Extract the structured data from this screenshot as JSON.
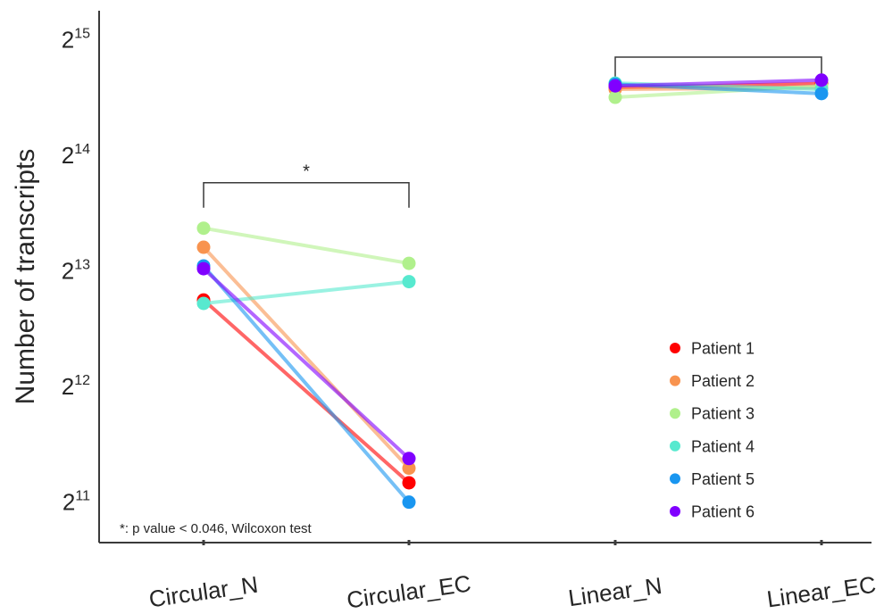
{
  "chart_data": {
    "type": "line",
    "ylabel": "Number of transcripts",
    "yscale": "log2",
    "ylim_exp": [
      10.65,
      15.25
    ],
    "yticks": [
      {
        "base": "2",
        "exp": "11",
        "value": 2048
      },
      {
        "base": "2",
        "exp": "12",
        "value": 4096
      },
      {
        "base": "2",
        "exp": "13",
        "value": 8192
      },
      {
        "base": "2",
        "exp": "14",
        "value": 16384
      },
      {
        "base": "2",
        "exp": "15",
        "value": 32768
      }
    ],
    "categories": [
      "Circular_N",
      "Circular_EC",
      "Linear_N",
      "Linear_EC"
    ],
    "series": [
      {
        "name": "Patient 1",
        "color": "#ff0000",
        "values": [
          6880,
          2300,
          24580,
          25170
        ]
      },
      {
        "name": "Patient 2",
        "color": "#f8934f",
        "values": [
          9440,
          2510,
          24330,
          24570
        ]
      },
      {
        "name": "Patient 3",
        "color": "#b0f08c",
        "values": [
          10580,
          8570,
          23190,
          24830
        ]
      },
      {
        "name": "Patient 4",
        "color": "#57e9cf",
        "values": [
          6740,
          7680,
          25250,
          24330
        ]
      },
      {
        "name": "Patient 5",
        "color": "#1996f0",
        "values": [
          8440,
          2048,
          25080,
          23710
        ]
      },
      {
        "name": "Patient 6",
        "color": "#8000ff",
        "values": [
          8300,
          2660,
          24830,
          25700
        ]
      }
    ],
    "annotations": [
      {
        "between": [
          "Circular_N",
          "Circular_EC"
        ],
        "label": "*",
        "at_value": 13900
      },
      {
        "between": [
          "Linear_N",
          "Linear_EC"
        ],
        "label": "",
        "at_value": 29500
      }
    ],
    "note": "*: p value < 0.046, Wilcoxon test",
    "legend_position": "bottom-right",
    "grid": false
  }
}
